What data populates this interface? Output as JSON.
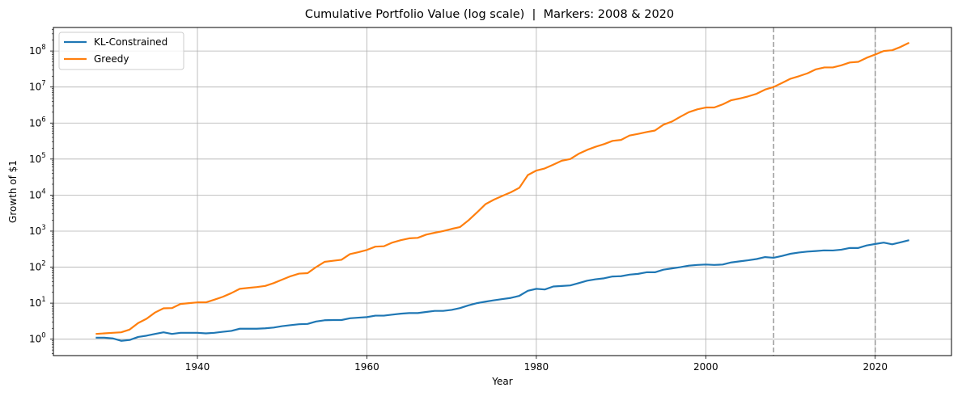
{
  "chart_data": {
    "type": "line",
    "title": "Cumulative Portfolio Value (log scale)  |  Markers: 2008 & 2020",
    "xlabel": "Year",
    "ylabel": "Growth of $1",
    "y_scale": "log",
    "xlim": [
      1923,
      2029
    ],
    "ylim": [
      0.35,
      450000000
    ],
    "x_ticks": [
      1940,
      1960,
      1980,
      2000,
      2020
    ],
    "y_ticks": [
      {
        "value": 1,
        "mantissa": "10",
        "exp": "0"
      },
      {
        "value": 10,
        "mantissa": "10",
        "exp": "1"
      },
      {
        "value": 100,
        "mantissa": "10",
        "exp": "2"
      },
      {
        "value": 1000,
        "mantissa": "10",
        "exp": "3"
      },
      {
        "value": 10000,
        "mantissa": "10",
        "exp": "4"
      },
      {
        "value": 100000,
        "mantissa": "10",
        "exp": "5"
      },
      {
        "value": 1000000,
        "mantissa": "10",
        "exp": "6"
      },
      {
        "value": 10000000,
        "mantissa": "10",
        "exp": "7"
      },
      {
        "value": 100000000,
        "mantissa": "10",
        "exp": "8"
      }
    ],
    "grid": true,
    "legend_position": "top-left",
    "vlines": [
      {
        "x": 2008,
        "color": "#999999",
        "style": "dashed"
      },
      {
        "x": 2020,
        "color": "#999999",
        "style": "dashed"
      }
    ],
    "series": [
      {
        "name": "KL-Constrained",
        "color": "#1f77b4",
        "x": [
          1928,
          1929,
          1930,
          1931,
          1932,
          1933,
          1934,
          1935,
          1936,
          1937,
          1938,
          1939,
          1940,
          1941,
          1942,
          1943,
          1944,
          1945,
          1946,
          1947,
          1948,
          1949,
          1950,
          1951,
          1952,
          1953,
          1954,
          1955,
          1956,
          1957,
          1958,
          1959,
          1960,
          1961,
          1962,
          1963,
          1964,
          1965,
          1966,
          1967,
          1968,
          1969,
          1970,
          1971,
          1972,
          1973,
          1974,
          1975,
          1976,
          1977,
          1978,
          1979,
          1980,
          1981,
          1982,
          1983,
          1984,
          1985,
          1986,
          1987,
          1988,
          1989,
          1990,
          1991,
          1992,
          1993,
          1994,
          1995,
          1996,
          1997,
          1998,
          1999,
          2000,
          2001,
          2002,
          2003,
          2004,
          2005,
          2006,
          2007,
          2008,
          2009,
          2010,
          2011,
          2012,
          2013,
          2014,
          2015,
          2016,
          2017,
          2018,
          2019,
          2020,
          2021,
          2022,
          2023,
          2024
        ],
        "y": [
          1.1,
          1.1,
          1.05,
          0.9,
          0.95,
          1.15,
          1.25,
          1.4,
          1.55,
          1.4,
          1.5,
          1.5,
          1.5,
          1.45,
          1.5,
          1.6,
          1.7,
          1.95,
          1.95,
          1.95,
          2.0,
          2.1,
          2.3,
          2.45,
          2.6,
          2.65,
          3.1,
          3.35,
          3.4,
          3.4,
          3.8,
          3.95,
          4.1,
          4.5,
          4.5,
          4.8,
          5.1,
          5.3,
          5.3,
          5.7,
          6.1,
          6.1,
          6.5,
          7.3,
          8.7,
          10,
          11,
          12,
          13,
          14,
          16,
          22,
          25,
          24,
          29,
          30,
          31,
          36,
          42,
          46,
          49,
          55,
          56,
          62,
          65,
          72,
          72,
          85,
          92,
          100,
          110,
          115,
          118,
          115,
          118,
          135,
          145,
          155,
          168,
          190,
          182,
          205,
          235,
          255,
          270,
          280,
          292,
          290,
          305,
          340,
          340,
          400,
          440,
          480,
          430,
          490,
          560
        ]
      },
      {
        "name": "Greedy",
        "color": "#ff7f0e",
        "x": [
          1928,
          1929,
          1930,
          1931,
          1932,
          1933,
          1934,
          1935,
          1936,
          1937,
          1938,
          1939,
          1940,
          1941,
          1942,
          1943,
          1944,
          1945,
          1946,
          1947,
          1948,
          1949,
          1950,
          1951,
          1952,
          1953,
          1954,
          1955,
          1956,
          1957,
          1958,
          1959,
          1960,
          1961,
          1962,
          1963,
          1964,
          1965,
          1966,
          1967,
          1968,
          1969,
          1970,
          1971,
          1972,
          1973,
          1974,
          1975,
          1976,
          1977,
          1978,
          1979,
          1980,
          1981,
          1982,
          1983,
          1984,
          1985,
          1986,
          1987,
          1988,
          1989,
          1990,
          1991,
          1992,
          1993,
          1994,
          1995,
          1996,
          1997,
          1998,
          1999,
          2000,
          2001,
          2002,
          2003,
          2004,
          2005,
          2006,
          2007,
          2008,
          2009,
          2010,
          2011,
          2012,
          2013,
          2014,
          2015,
          2016,
          2017,
          2018,
          2019,
          2020,
          2021,
          2022,
          2023,
          2024
        ],
        "y": [
          1.4,
          1.45,
          1.5,
          1.55,
          1.85,
          2.8,
          3.7,
          5.5,
          7.2,
          7.3,
          9.5,
          10,
          10.5,
          10.5,
          12.5,
          15,
          19,
          25,
          26.5,
          28,
          30,
          36,
          45,
          56,
          66,
          68,
          100,
          140,
          150,
          160,
          230,
          260,
          300,
          370,
          380,
          480,
          560,
          630,
          650,
          800,
          900,
          1000,
          1150,
          1300,
          2000,
          3300,
          5600,
          7500,
          9500,
          12000,
          16000,
          36000,
          48000,
          55000,
          70000,
          90000,
          100000,
          140000,
          180000,
          220000,
          260000,
          320000,
          340000,
          450000,
          500000,
          560000,
          620000,
          900000,
          1100000,
          1500000,
          2000000,
          2400000,
          2700000,
          2700000,
          3300000,
          4300000,
          4800000,
          5500000,
          6500000,
          8500000,
          10000000,
          13000000,
          17000000,
          20000000,
          24000000,
          31000000,
          35000000,
          35000000,
          40000000,
          48000000,
          50000000,
          65000000,
          80000000,
          100000000,
          105000000,
          130000000,
          170000000
        ]
      }
    ]
  }
}
